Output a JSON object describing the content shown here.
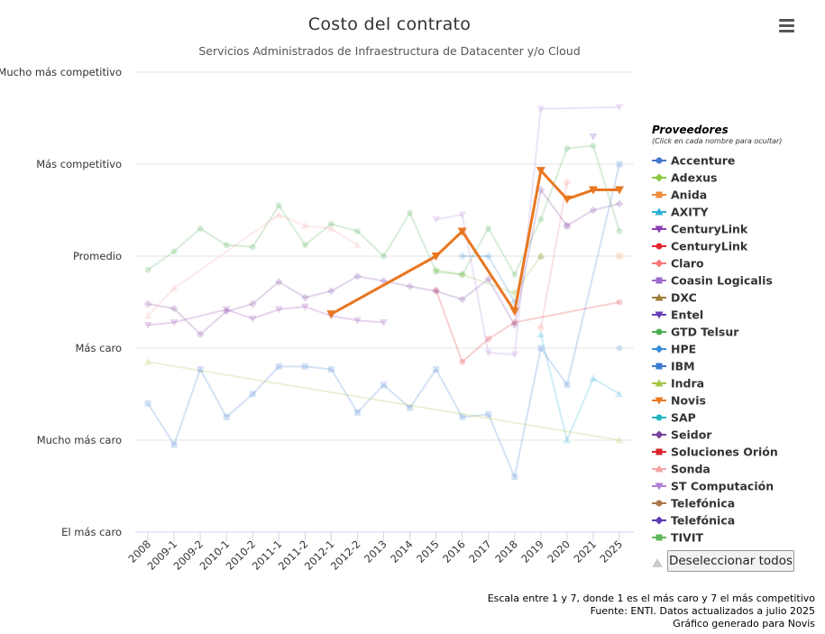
{
  "chart_data": {
    "type": "line",
    "title": "Costo del contrato",
    "subtitle": "Servicios Administrados de Infraestructura de Datacenter y/o Cloud",
    "y_scale": {
      "min": 1,
      "max": 7
    },
    "y_tick_labels": [
      "El más caro",
      "Mucho más caro",
      "Más caro",
      "Promedio",
      "Más competitivo",
      "Mucho más competitivo"
    ],
    "categories": [
      "2008",
      "2009-1",
      "2009-2",
      "2010-1",
      "2010-2",
      "2011-1",
      "2011-2",
      "2012-1",
      "2012-2",
      "2013",
      "2014",
      "2015",
      "2016",
      "2017",
      "2018",
      "2019",
      "2020",
      "2021",
      "2025"
    ],
    "highlighted_series": "Novis",
    "series": [
      {
        "name": "Accenture",
        "color": "#4477cc",
        "marker": "circle",
        "values": [
          null,
          null,
          null,
          null,
          null,
          null,
          null,
          null,
          null,
          null,
          null,
          null,
          null,
          null,
          null,
          null,
          null,
          null,
          3.0
        ]
      },
      {
        "name": "Adexus",
        "color": "#8cc63f",
        "marker": "diamond",
        "values": [
          null,
          null,
          null,
          null,
          null,
          null,
          null,
          null,
          null,
          null,
          null,
          3.85,
          3.8,
          null,
          3.6,
          4.0,
          null,
          null,
          null
        ]
      },
      {
        "name": "Anida",
        "color": "#f08c3c",
        "marker": "square",
        "values": [
          null,
          null,
          null,
          null,
          null,
          null,
          null,
          null,
          null,
          null,
          null,
          null,
          null,
          null,
          null,
          null,
          null,
          null,
          4.0
        ]
      },
      {
        "name": "AXITY",
        "color": "#2aaed6",
        "marker": "triangle",
        "values": [
          null,
          null,
          null,
          null,
          null,
          null,
          null,
          null,
          null,
          null,
          null,
          null,
          null,
          null,
          null,
          3.15,
          2.0,
          2.67,
          2.5
        ]
      },
      {
        "name": "CenturyLink",
        "color": "#8b3bb0",
        "marker": "triangle-down",
        "values": [
          3.25,
          3.28,
          null,
          3.42,
          3.32,
          3.42,
          3.45,
          3.35,
          3.3,
          3.28,
          null,
          null,
          null,
          null,
          null,
          null,
          null,
          null,
          null
        ]
      },
      {
        "name": "CenturyLink",
        "color": "#e0282f",
        "marker": "circle",
        "values": [
          null,
          null,
          null,
          null,
          null,
          null,
          null,
          null,
          null,
          null,
          null,
          3.63,
          2.85,
          3.1,
          3.28,
          null,
          null,
          null,
          3.5
        ]
      },
      {
        "name": "Claro",
        "color": "#f47a7a",
        "marker": "diamond",
        "values": [
          null,
          null,
          null,
          null,
          null,
          null,
          null,
          null,
          null,
          null,
          null,
          null,
          null,
          null,
          null,
          3.22,
          4.8,
          null,
          null
        ]
      },
      {
        "name": "Coasin Logicalis",
        "color": "#9b6bcc",
        "marker": "square",
        "values": [
          null,
          null,
          null,
          null,
          null,
          null,
          null,
          null,
          null,
          null,
          null,
          null,
          null,
          null,
          null,
          null,
          4.33,
          null,
          null
        ]
      },
      {
        "name": "DXC",
        "color": "#a07c3a",
        "marker": "triangle",
        "values": [
          null,
          null,
          null,
          null,
          null,
          null,
          null,
          null,
          null,
          null,
          null,
          null,
          null,
          null,
          null,
          4.0,
          null,
          null,
          null
        ]
      },
      {
        "name": "Entel",
        "color": "#6a3db8",
        "marker": "triangle-down",
        "values": [
          null,
          null,
          null,
          null,
          null,
          null,
          null,
          null,
          null,
          null,
          null,
          null,
          null,
          null,
          null,
          null,
          null,
          5.3,
          null
        ]
      },
      {
        "name": "GTD Telsur",
        "color": "#4caf50",
        "marker": "circle",
        "values": [
          3.85,
          4.05,
          4.3,
          4.12,
          4.1,
          4.55,
          4.12,
          4.35,
          4.27,
          4.0,
          4.47,
          3.83,
          3.8,
          4.3,
          3.8,
          4.4,
          5.17,
          5.2,
          4.27
        ]
      },
      {
        "name": "HPE",
        "color": "#3a8fd8",
        "marker": "diamond",
        "values": [
          null,
          null,
          null,
          null,
          null,
          null,
          null,
          null,
          null,
          null,
          null,
          null,
          4.0,
          4.0,
          3.5,
          null,
          null,
          null,
          null
        ]
      },
      {
        "name": "IBM",
        "color": "#3a7ad0",
        "marker": "square",
        "values": [
          2.4,
          1.95,
          2.77,
          2.25,
          2.5,
          2.8,
          2.8,
          2.77,
          2.3,
          2.6,
          2.35,
          2.77,
          2.25,
          2.28,
          1.6,
          3.0,
          2.6,
          null,
          5.0
        ]
      },
      {
        "name": "Indra",
        "color": "#a6c445",
        "marker": "triangle",
        "values": [
          2.85,
          null,
          null,
          null,
          null,
          null,
          null,
          null,
          null,
          null,
          null,
          null,
          null,
          null,
          null,
          null,
          null,
          null,
          2.0
        ]
      },
      {
        "name": "Novis",
        "color": "#e87722",
        "marker": "triangle-down",
        "values": [
          null,
          null,
          null,
          null,
          null,
          null,
          null,
          3.37,
          null,
          null,
          null,
          4.0,
          4.27,
          null,
          3.4,
          4.93,
          4.62,
          4.72,
          4.72
        ]
      },
      {
        "name": "SAP",
        "color": "#22b8c0",
        "marker": "circle",
        "values": [
          null,
          null,
          null,
          null,
          null,
          null,
          null,
          null,
          null,
          null,
          null,
          null,
          null,
          null,
          null,
          null,
          null,
          null,
          null
        ]
      },
      {
        "name": "Seidor",
        "color": "#7b3f9e",
        "marker": "diamond",
        "values": [
          3.48,
          3.43,
          3.15,
          3.4,
          3.48,
          3.72,
          3.55,
          3.62,
          3.78,
          3.73,
          3.67,
          3.62,
          3.53,
          3.75,
          3.25,
          4.72,
          4.33,
          4.5,
          4.57
        ]
      },
      {
        "name": "Soluciones Orión",
        "color": "#d8232a",
        "marker": "square",
        "values": [
          null,
          null,
          null,
          null,
          null,
          null,
          null,
          null,
          null,
          null,
          null,
          null,
          null,
          null,
          null,
          null,
          null,
          null,
          null
        ]
      },
      {
        "name": "Sonda",
        "color": "#f4a4a4",
        "marker": "triangle",
        "values": [
          3.35,
          3.65,
          null,
          null,
          null,
          4.45,
          4.33,
          4.3,
          4.12,
          null,
          null,
          null,
          null,
          null,
          null,
          null,
          null,
          null,
          null
        ]
      },
      {
        "name": "ST Computación",
        "color": "#b07ed8",
        "marker": "triangle-down",
        "values": [
          null,
          null,
          null,
          null,
          null,
          null,
          null,
          null,
          null,
          null,
          null,
          4.4,
          4.45,
          2.95,
          2.93,
          5.6,
          null,
          null,
          5.62
        ]
      },
      {
        "name": "Telefónica",
        "color": "#a8784a",
        "marker": "circle",
        "values": [
          null,
          null,
          null,
          null,
          null,
          null,
          null,
          null,
          null,
          null,
          null,
          null,
          null,
          null,
          null,
          null,
          null,
          null,
          null
        ]
      },
      {
        "name": "Telefónica",
        "color": "#5a3bb0",
        "marker": "diamond",
        "values": [
          null,
          null,
          null,
          null,
          null,
          null,
          null,
          null,
          null,
          null,
          null,
          null,
          null,
          null,
          null,
          null,
          null,
          null,
          null
        ]
      },
      {
        "name": "TIVIT",
        "color": "#5db85a",
        "marker": "square",
        "values": [
          null,
          null,
          null,
          null,
          null,
          null,
          null,
          null,
          null,
          null,
          null,
          null,
          null,
          null,
          null,
          null,
          null,
          null,
          null
        ]
      }
    ],
    "legend": {
      "title": "Proveedores",
      "hint": "(Click en cada nombre para ocultar)",
      "position": "right"
    },
    "grid": true,
    "notes": [
      "Escala entre 1 y 7, donde 1 es el más caro y 7 el más competitivo",
      "Fuente: ENTI. Datos actualizados a julio 2025",
      "Gráfico generado para Novis"
    ]
  },
  "controls": {
    "deselect_label": "Deseleccionar todos",
    "menu_icon": "hamburger-menu-icon"
  }
}
